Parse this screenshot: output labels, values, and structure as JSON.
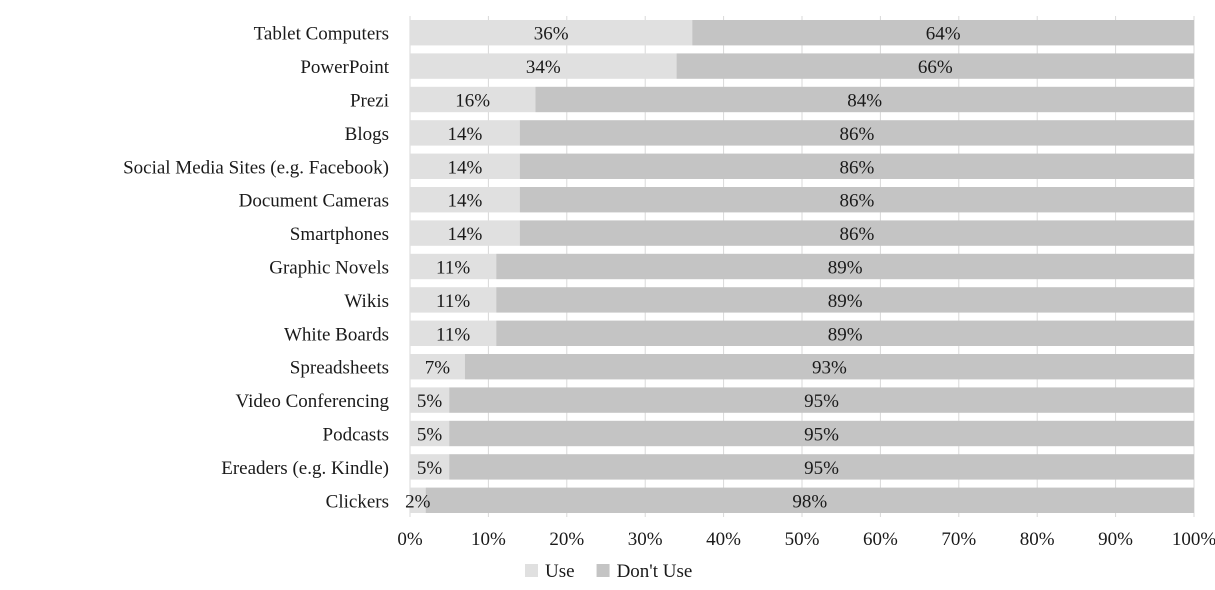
{
  "chart_data": {
    "type": "bar",
    "orientation": "horizontal",
    "stacked": "percent",
    "categories": [
      "Tablet Computers",
      "PowerPoint",
      "Prezi",
      "Blogs",
      "Social Media Sites (e.g. Facebook)",
      "Document Cameras",
      "Smartphones",
      "Graphic Novels",
      "Wikis",
      "White Boards",
      "Spreadsheets",
      "Video Conferencing",
      "Podcasts",
      "Ereaders (e.g. Kindle)",
      "Clickers"
    ],
    "series": [
      {
        "name": "Use",
        "color": "#e0e0e0",
        "values": [
          36,
          34,
          16,
          14,
          14,
          14,
          14,
          11,
          11,
          11,
          7,
          5,
          5,
          5,
          2
        ],
        "labels": [
          "36%",
          "34%",
          "16%",
          "14%",
          "14%",
          "14%",
          "14%",
          "11%",
          "11%",
          "11%",
          "7%",
          "5%",
          "5%",
          "5%",
          "2%"
        ]
      },
      {
        "name": "Don't Use",
        "color": "#c4c4c4",
        "values": [
          64,
          66,
          84,
          86,
          86,
          86,
          86,
          89,
          89,
          89,
          93,
          95,
          95,
          95,
          98
        ],
        "labels": [
          "64%",
          "66%",
          "84%",
          "86%",
          "86%",
          "86%",
          "86%",
          "89%",
          "89%",
          "89%",
          "93%",
          "95%",
          "95%",
          "95%",
          "98%"
        ]
      }
    ],
    "xlim": [
      0,
      100
    ],
    "xticks": [
      "0%",
      "10%",
      "20%",
      "30%",
      "40%",
      "50%",
      "60%",
      "70%",
      "80%",
      "90%",
      "100%"
    ],
    "grid": true,
    "legend_position": "bottom"
  }
}
